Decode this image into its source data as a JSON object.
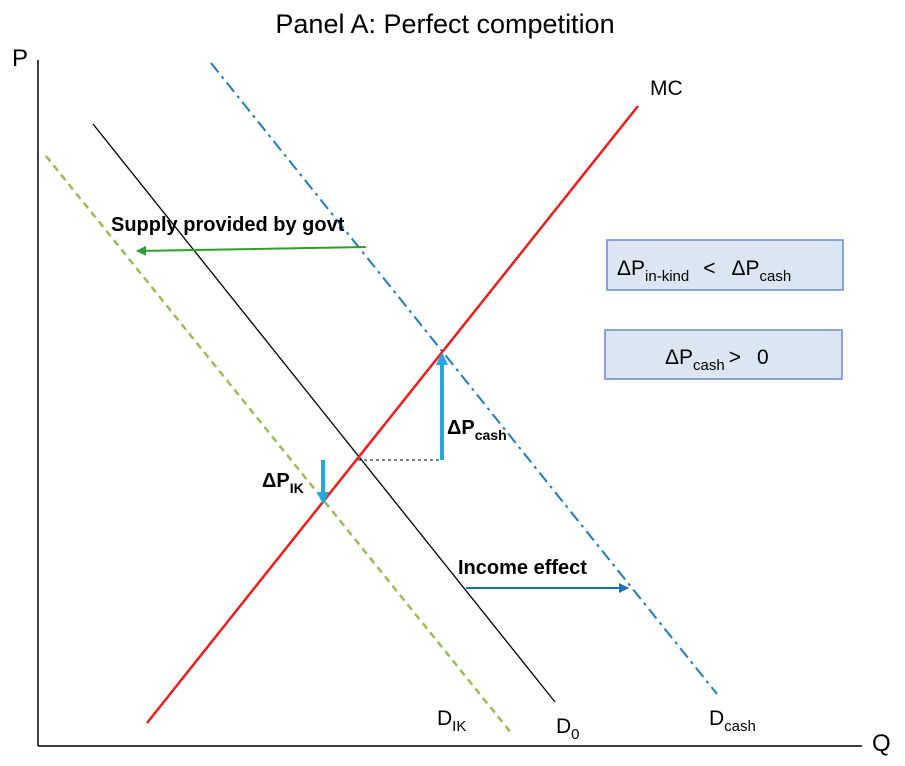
{
  "title": "Panel A: Perfect competition",
  "axes": {
    "y_label": "P",
    "x_label": "Q"
  },
  "curves": {
    "mc": {
      "label": "MC",
      "color": "#ee1c1c"
    },
    "d0": {
      "label_main": "D",
      "label_sub": "0",
      "color": "#000000"
    },
    "dik": {
      "label_main": "D",
      "label_sub": "IK",
      "color": "#9bbb59",
      "style": "dashed"
    },
    "dcash": {
      "label_main": "D",
      "label_sub": "cash",
      "color": "#1f7bc1",
      "style": "dash-dot"
    }
  },
  "annotations": {
    "supply_govt": {
      "text": "Supply provided by govt",
      "arrow_color": "#2ca02c"
    },
    "income_effect": {
      "text": "Income effect",
      "arrow_color": "#1f6fb5"
    },
    "delta_p_cash": {
      "main": "ΔP",
      "sub": "cash",
      "arrow_color": "#22a7e0"
    },
    "delta_p_ik": {
      "main": "ΔP",
      "sub": "IK",
      "arrow_color": "#22a7e0"
    }
  },
  "boxes": {
    "box1": {
      "left_main": "ΔP",
      "left_sub": "in-kind",
      "op": "<",
      "right_main": "ΔP",
      "right_sub": "cash"
    },
    "box2": {
      "main": "ΔP",
      "sub": "cash",
      "op": ">",
      "value": "0"
    }
  }
}
